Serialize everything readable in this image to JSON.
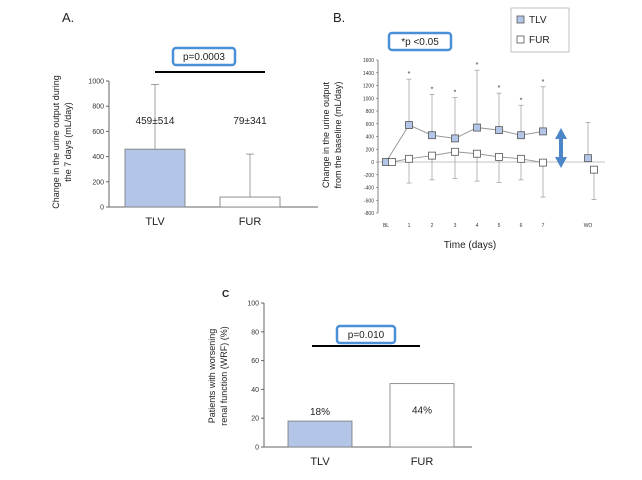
{
  "chart_data": [
    {
      "panel_label": "A.",
      "type": "bar",
      "categories": [
        "TLV",
        "FUR"
      ],
      "values": [
        459,
        79
      ],
      "errors": [
        514,
        341
      ],
      "value_labels": [
        "459±514",
        "79±341"
      ],
      "ylabel": "Change in the urine output during the 7 days (mL/day)",
      "ylim": [
        0,
        1000
      ],
      "yticks": [
        "0",
        "200",
        "400",
        "600",
        "800",
        "1000"
      ],
      "annotation": "p=0.0003",
      "colors": {
        "TLV": "#b4c6e7",
        "FUR": "#ffffff"
      }
    },
    {
      "panel_label": "B.",
      "type": "line",
      "x": [
        "BL",
        "1",
        "2",
        "3",
        "4",
        "5",
        "6",
        "7",
        "WO"
      ],
      "xlabel": "Time (days)",
      "ylabel": "Change in the urine output from the baseline (mL/day)",
      "ylim": [
        -800,
        1600
      ],
      "yticks": [
        "-800",
        "-600",
        "-400",
        "-200",
        "0",
        "200",
        "400",
        "600",
        "800",
        "1000",
        "1200",
        "1400",
        "1600"
      ],
      "annotation": "*p <0.05",
      "legend_position": "top-right",
      "series": [
        {
          "name": "TLV",
          "values": [
            0,
            580,
            420,
            370,
            540,
            500,
            420,
            480,
            60
          ],
          "errors": [
            0,
            720,
            640,
            640,
            900,
            580,
            470,
            700,
            560
          ],
          "color": "#b4c6e7",
          "marker": "square"
        },
        {
          "name": "FUR",
          "values": [
            0,
            50,
            100,
            160,
            130,
            80,
            50,
            -10,
            -120
          ],
          "errors": [
            0,
            380,
            380,
            420,
            430,
            400,
            330,
            540,
            470
          ],
          "color": "#ffffff",
          "marker": "square"
        }
      ],
      "significance_marks": [
        "*",
        "*",
        "*",
        "*",
        "*",
        "*",
        "*"
      ]
    },
    {
      "panel_label": "C",
      "type": "bar",
      "categories": [
        "TLV",
        "FUR"
      ],
      "values": [
        18,
        44
      ],
      "value_labels": [
        "18%",
        "44%"
      ],
      "ylabel": "Patients with worsening renal function (WRF) (%)",
      "ylim": [
        0,
        100
      ],
      "yticks": [
        "0",
        "20",
        "40",
        "60",
        "80",
        "100"
      ],
      "annotation": "p=0.010",
      "colors": {
        "TLV": "#b4c6e7",
        "FUR": "#ffffff"
      }
    }
  ]
}
